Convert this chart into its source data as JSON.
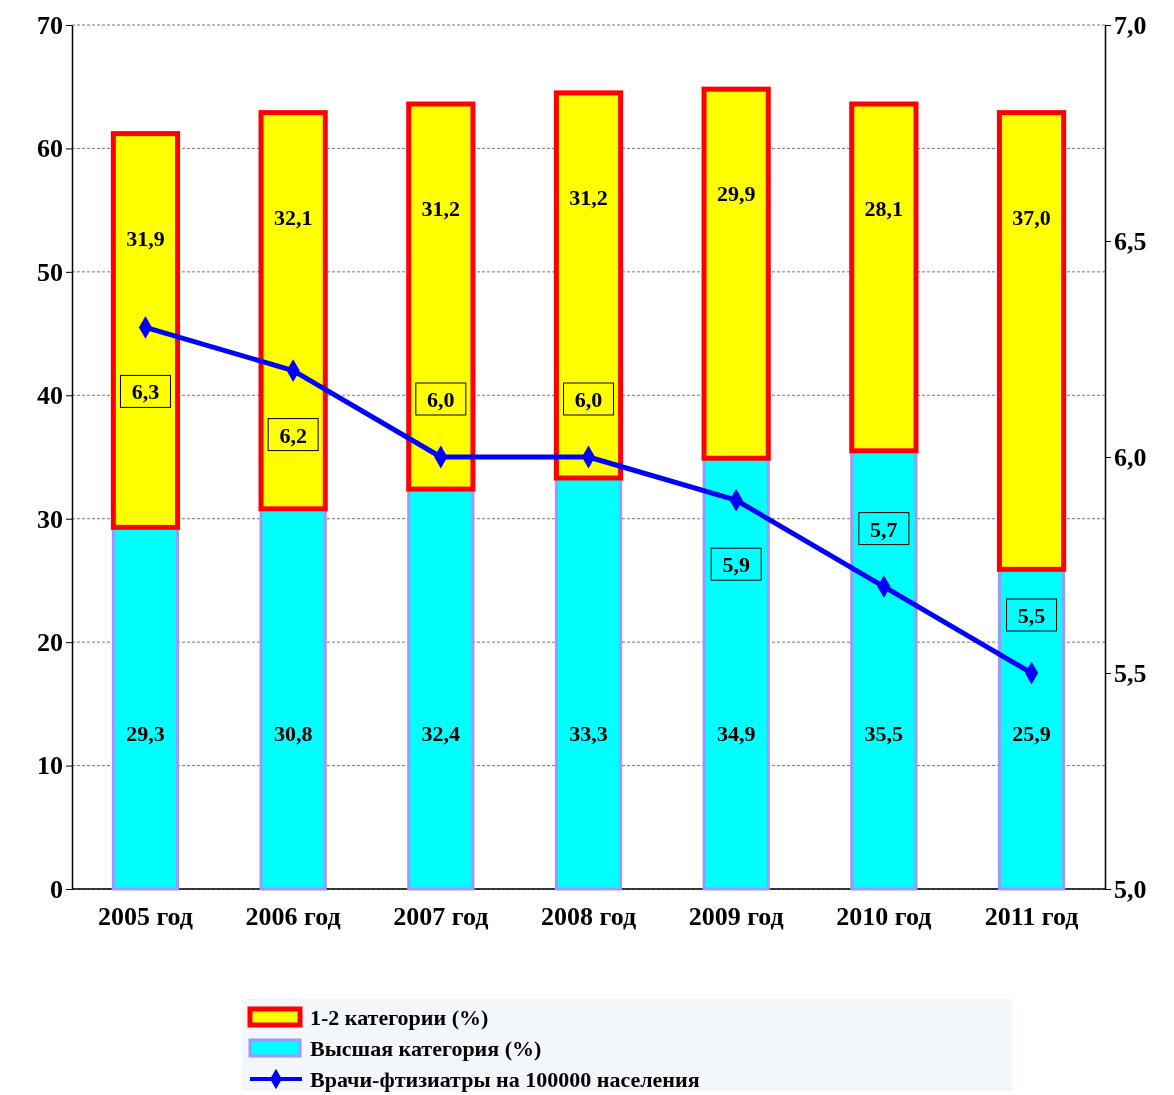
{
  "chart_data": {
    "type": "bar",
    "stacked": true,
    "categories": [
      "2005 год",
      "2006 год",
      "2007 год",
      "2008 год",
      "2009 год",
      "2010 год",
      "2011 год"
    ],
    "series": [
      {
        "name": "Высшая категория (%)",
        "color": "#00ffff",
        "values": [
          29.3,
          30.8,
          32.4,
          33.3,
          34.9,
          35.5,
          25.9
        ],
        "value_labels": [
          "29,3",
          "30,8",
          "32,4",
          "33,3",
          "34,9",
          "35,5",
          "25,9"
        ]
      },
      {
        "name": "1-2 категории (%)",
        "color": "#ffff00",
        "values": [
          31.9,
          32.1,
          31.2,
          31.2,
          29.9,
          28.1,
          37.0
        ],
        "value_labels": [
          "31,9",
          "32,1",
          "31,2",
          "31,2",
          "29,9",
          "28,1",
          "37,0"
        ]
      },
      {
        "name": "Врачи-фтизиатры на 100000 населения",
        "type": "line",
        "axis": "y2",
        "color": "#0000ff",
        "values": [
          6.3,
          6.2,
          6.0,
          6.0,
          5.9,
          5.7,
          5.5
        ],
        "value_labels": [
          "6,3",
          "6,2",
          "6,0",
          "6,0",
          "5,9",
          "5,7",
          "5,5"
        ]
      }
    ],
    "ylim": [
      0,
      70
    ],
    "yticks": [
      0,
      10,
      20,
      30,
      40,
      50,
      60,
      70
    ],
    "y2lim": [
      5.0,
      7.0
    ],
    "y2ticks": [
      {
        "value": 5.0,
        "label": "5,0"
      },
      {
        "value": 5.5,
        "label": "5,5"
      },
      {
        "value": 6.0,
        "label": "6,0"
      },
      {
        "value": 6.5,
        "label": "6,5"
      },
      {
        "value": 7.0,
        "label": "7,0"
      }
    ],
    "grid": "y",
    "legend": "bottom",
    "marker": "diamond",
    "line_style": "solid"
  }
}
